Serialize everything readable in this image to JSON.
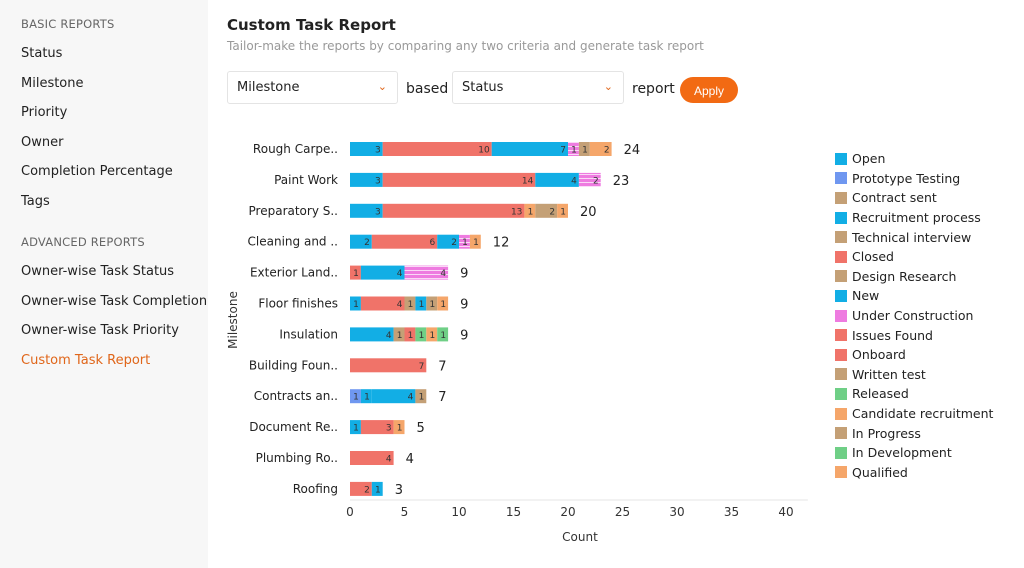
{
  "sidebar": {
    "basic_heading": "BASIC REPORTS",
    "basic_items": [
      "Status",
      "Milestone",
      "Priority",
      "Owner",
      "Completion Percentage",
      "Tags"
    ],
    "advanced_heading": "ADVANCED REPORTS",
    "advanced_items": [
      "Owner-wise Task Status",
      "Owner-wise Task Completion",
      "Owner-wise Task Priority",
      "Custom Task Report"
    ],
    "active": "Custom Task Report"
  },
  "header": {
    "title": "Custom Task Report",
    "subtitle": "Tailor-make the reports by comparing any two criteria and generate task report"
  },
  "controls": {
    "criteria1": "Milestone",
    "based_label": "based",
    "criteria2": "Status",
    "report_label": "report",
    "apply_label": "Apply"
  },
  "chart_data": {
    "type": "stacked-bar-horizontal",
    "xlabel": "Count",
    "ylabel": "Milestone",
    "xlim": [
      0,
      40
    ],
    "xticks": [
      0,
      5,
      10,
      15,
      20,
      25,
      30,
      35,
      40
    ],
    "legend_position": "right",
    "legend": [
      {
        "name": "Open",
        "color": "#12aee5"
      },
      {
        "name": "Prototype Testing",
        "color": "#6f97f0"
      },
      {
        "name": "Contract sent",
        "color": "#c4a076"
      },
      {
        "name": "Recruitment process",
        "color": "#12aee5"
      },
      {
        "name": "Technical interview",
        "color": "#c4a076"
      },
      {
        "name": "Closed",
        "color": "#f07369"
      },
      {
        "name": "Design Research",
        "color": "#c4a076"
      },
      {
        "name": "New",
        "color": "#12aee5"
      },
      {
        "name": "Under Construction",
        "color": "#ee7be0"
      },
      {
        "name": "Issues Found",
        "color": "#f07369"
      },
      {
        "name": "Onboard",
        "color": "#f07369"
      },
      {
        "name": "Written test",
        "color": "#c4a076"
      },
      {
        "name": "Released",
        "color": "#6fcf86"
      },
      {
        "name": "Candidate recruitment",
        "color": "#f5a66a"
      },
      {
        "name": "In Progress",
        "color": "#c4a076"
      },
      {
        "name": "In Development",
        "color": "#6fcf86"
      },
      {
        "name": "Qualified",
        "color": "#f5a66a"
      }
    ],
    "categories": [
      {
        "label": "Rough Carpe..",
        "total": 24,
        "segments": [
          [
            "Open",
            3
          ],
          [
            "Closed",
            10
          ],
          [
            "New",
            7
          ],
          [
            "Under Construction",
            1
          ],
          [
            "In Progress",
            1
          ],
          [
            "Qualified",
            2
          ]
        ]
      },
      {
        "label": "Paint Work",
        "total": 23,
        "segments": [
          [
            "Open",
            3
          ],
          [
            "Closed",
            14
          ],
          [
            "New",
            4
          ],
          [
            "Under Construction",
            2
          ]
        ]
      },
      {
        "label": "Preparatory S..",
        "total": 20,
        "segments": [
          [
            "Open",
            3
          ],
          [
            "Closed",
            13
          ],
          [
            "Qualified",
            1
          ],
          [
            "In Progress",
            2
          ],
          [
            "Candidate recruitment",
            1
          ]
        ]
      },
      {
        "label": "Cleaning and ..",
        "total": 12,
        "segments": [
          [
            "Open",
            2
          ],
          [
            "Closed",
            6
          ],
          [
            "New",
            2
          ],
          [
            "Under Construction",
            1
          ],
          [
            "Qualified",
            1
          ]
        ]
      },
      {
        "label": "Exterior Land..",
        "total": 9,
        "segments": [
          [
            "Closed",
            1
          ],
          [
            "Open",
            4
          ],
          [
            "Under Construction",
            4
          ]
        ]
      },
      {
        "label": "Floor finishes",
        "total": 9,
        "segments": [
          [
            "Open",
            1
          ],
          [
            "Closed",
            4
          ],
          [
            "In Progress",
            1
          ],
          [
            "New",
            1
          ],
          [
            "Design Research",
            1
          ],
          [
            "Qualified",
            1
          ]
        ]
      },
      {
        "label": "Insulation",
        "total": 9,
        "segments": [
          [
            "Open",
            4
          ],
          [
            "In Progress",
            1
          ],
          [
            "Closed",
            1
          ],
          [
            "Released",
            1
          ],
          [
            "Qualified",
            1
          ],
          [
            "In Development",
            1
          ]
        ]
      },
      {
        "label": "Building Foun..",
        "total": 7,
        "segments": [
          [
            "Closed",
            7
          ]
        ]
      },
      {
        "label": "Contracts an..",
        "total": 7,
        "segments": [
          [
            "Prototype Testing",
            1
          ],
          [
            "Open",
            1
          ],
          [
            "New",
            4
          ],
          [
            "Contract sent",
            1
          ]
        ]
      },
      {
        "label": "Document Re..",
        "total": 5,
        "segments": [
          [
            "Open",
            1
          ],
          [
            "Closed",
            3
          ],
          [
            "Qualified",
            1
          ]
        ]
      },
      {
        "label": "Plumbing Ro..",
        "total": 4,
        "segments": [
          [
            "Closed",
            4
          ]
        ]
      },
      {
        "label": "Roofing",
        "total": 3,
        "segments": [
          [
            "Closed",
            2
          ],
          [
            "Open",
            1
          ]
        ]
      }
    ]
  }
}
